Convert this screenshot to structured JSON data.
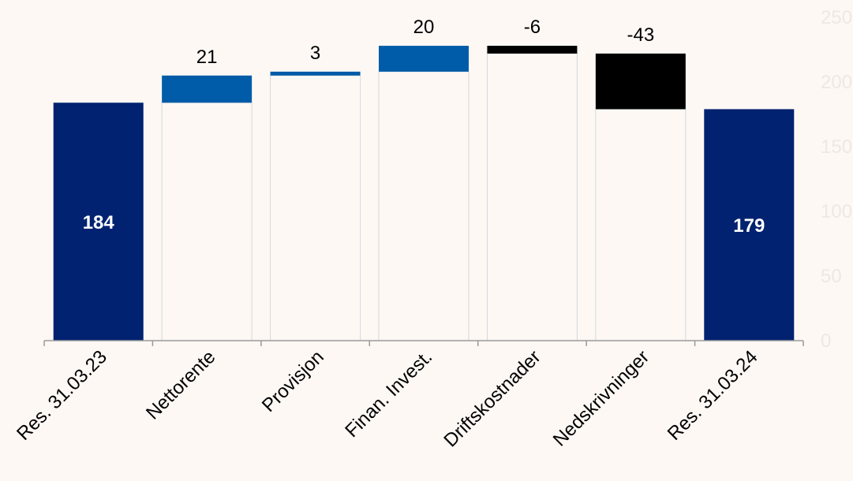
{
  "chart_data": {
    "type": "bar",
    "subtype": "waterfall",
    "categories": [
      "Res. 31.03.23",
      "Nettorente",
      "Provisjon",
      "Finan. Invest.",
      "Driftskostnader",
      "Nedskrivninger",
      "Res. 31.03.24"
    ],
    "values": [
      184,
      21,
      3,
      20,
      -6,
      -43,
      179
    ],
    "labels": [
      "184",
      "21",
      "3",
      "20",
      "-6",
      "-43",
      "179"
    ],
    "kinds": [
      "total",
      "delta",
      "delta",
      "delta",
      "delta",
      "delta",
      "total"
    ],
    "ylim": [
      0,
      250
    ],
    "yticks": [
      "0",
      "50",
      "100",
      "150",
      "200",
      "250"
    ],
    "ytick_values": [
      0,
      50,
      100,
      150,
      200,
      250
    ],
    "axis_side": "right",
    "grid": false,
    "colors": {
      "total": "#002270",
      "increase": "#005ca8",
      "decrease": "#000000",
      "connector": "#d4d8df",
      "axis": "#9a9a9a",
      "background": "#fdf8f4",
      "ytick": "#efe7e2"
    }
  }
}
